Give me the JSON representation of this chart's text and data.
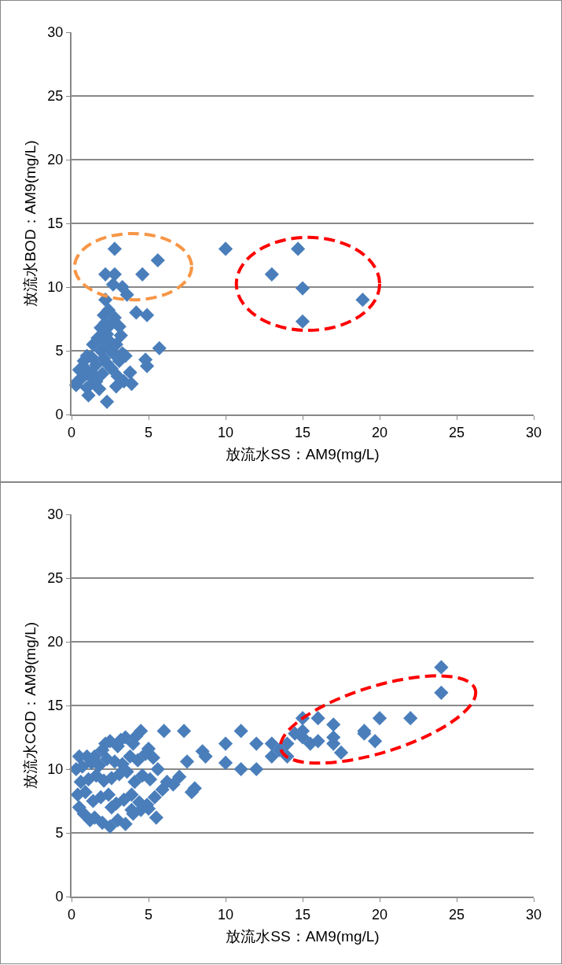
{
  "chart_data": [
    {
      "type": "scatter",
      "xlabel": "放流水SS：AM9(mg/L)",
      "ylabel": "放流水BOD：AM9(mg/L)",
      "xlim": [
        0,
        30
      ],
      "ylim": [
        0,
        30
      ],
      "xticks": [
        0,
        5,
        10,
        15,
        20,
        25,
        30
      ],
      "yticks": [
        0,
        5,
        10,
        15,
        20,
        25,
        30
      ],
      "grid": "y",
      "marker": "diamond",
      "x": [
        10,
        13,
        14.7,
        15,
        15,
        18.9,
        2.8,
        2.2,
        2.8,
        4.6,
        5.6,
        3.3,
        3.6,
        2.7,
        2.2,
        4.2,
        4.9,
        5.7,
        4.8,
        4.9,
        3.9,
        2.3,
        1.1,
        0.3,
        0.5,
        0.8,
        1,
        1.2,
        1.5,
        1.8,
        2,
        2.3,
        2.6,
        3,
        3.4,
        3.8,
        0.9,
        1.3,
        1.6,
        1.9,
        2.1,
        2.4,
        2.7,
        3.1,
        3.5,
        1.4,
        1.7,
        2,
        2.3,
        2.6,
        2.9,
        3.2,
        1.9,
        2.2,
        2.5,
        2.8,
        3.1,
        2.1,
        2.4,
        0.4,
        0.7,
        1,
        1.3,
        1.6,
        2.9,
        3.3
      ],
      "series": [
        {
          "color": "#4a7ebb",
          "values": [
            13,
            11,
            13,
            9.9,
            7.3,
            9,
            13,
            11,
            11,
            11,
            12.1,
            10,
            9.4,
            10.2,
            9,
            8,
            7.8,
            5.2,
            4.3,
            3.8,
            2.4,
            1,
            1.5,
            2.3,
            3.5,
            4.2,
            4.6,
            3,
            2.5,
            2,
            3.2,
            4,
            3.6,
            3,
            2.6,
            3.3,
            3.6,
            4.5,
            3.9,
            5,
            4.4,
            5.2,
            4.8,
            4.2,
            4.6,
            5.5,
            6,
            5.8,
            6.3,
            5.6,
            5.5,
            6.2,
            6.8,
            7.2,
            7,
            7.6,
            6.9,
            7.8,
            8.2,
            2.6,
            2.9,
            2.1,
            3.3,
            2.6,
            2.2,
            4.8
          ]
        }
      ]
    },
    {
      "type": "scatter",
      "xlabel": "放流水SS：AM9(mg/L)",
      "ylabel": "放流水COD：AM9(mg/L)",
      "xlim": [
        0,
        30
      ],
      "ylim": [
        0,
        30
      ],
      "xticks": [
        0,
        5,
        10,
        15,
        20,
        25,
        30
      ],
      "yticks": [
        0,
        5,
        10,
        15,
        20,
        25,
        30
      ],
      "grid": "y",
      "marker": "diamond",
      "x": [
        6,
        7.3,
        7.5,
        8.5,
        8.7,
        7.8,
        8,
        10,
        10,
        11,
        11,
        12,
        12,
        13,
        13,
        13.5,
        14,
        14,
        15,
        15,
        15,
        16,
        16,
        17,
        17,
        17,
        17.5,
        19,
        19,
        19.7,
        20,
        22,
        24,
        24,
        14.5,
        15.5,
        0.5,
        0.8,
        1.2,
        1.5,
        2,
        2.5,
        3,
        3.5,
        4,
        4.5,
        5,
        5.5,
        0.4,
        0.9,
        1.4,
        1.9,
        2.4,
        2.9,
        3.4,
        3.9,
        4.4,
        4.9,
        5.4,
        5.9,
        0.6,
        1.1,
        1.6,
        2.1,
        2.6,
        3.1,
        3.6,
        4.1,
        4.6,
        5.1,
        0.3,
        0.7,
        1.3,
        1.8,
        2.3,
        2.8,
        3.3,
        3.8,
        4.3,
        4.8,
        5.3,
        6.2,
        6.6,
        7,
        1,
        2,
        3,
        4,
        5,
        2.5,
        3.5,
        4.5,
        1.5,
        2.2,
        3.2,
        4.2,
        0.5,
        2.6,
        3.9,
        5.6
      ],
      "series": [
        {
          "color": "#4a7ebb",
          "values": [
            13,
            13,
            10.6,
            11.4,
            11,
            8.2,
            8.5,
            12,
            10.5,
            13,
            10,
            12,
            10,
            12,
            11,
            11.5,
            12,
            11,
            14,
            13,
            12.5,
            14,
            12.2,
            13.5,
            12.5,
            12,
            11.3,
            13,
            12.8,
            12.2,
            14,
            14,
            18,
            16,
            12.8,
            12,
            7,
            6.5,
            6,
            6.2,
            5.8,
            5.5,
            6,
            5.7,
            6.5,
            6.8,
            6.9,
            6.2,
            8,
            8.2,
            7.5,
            7.8,
            8,
            7.3,
            7.6,
            8,
            7.4,
            7.2,
            7.8,
            8.4,
            9,
            9.2,
            9.5,
            9.1,
            9.3,
            9.6,
            9.8,
            9,
            9.5,
            9.2,
            10,
            10.2,
            10.5,
            10.3,
            10.8,
            10.6,
            10.4,
            11,
            10.7,
            11.2,
            10.9,
            9,
            8.8,
            9.4,
            11,
            11.5,
            11.8,
            12,
            11.6,
            12.2,
            12.5,
            13,
            11,
            12,
            12.3,
            12.6,
            11,
            7,
            6.8,
            10
          ]
        }
      ]
    }
  ]
}
